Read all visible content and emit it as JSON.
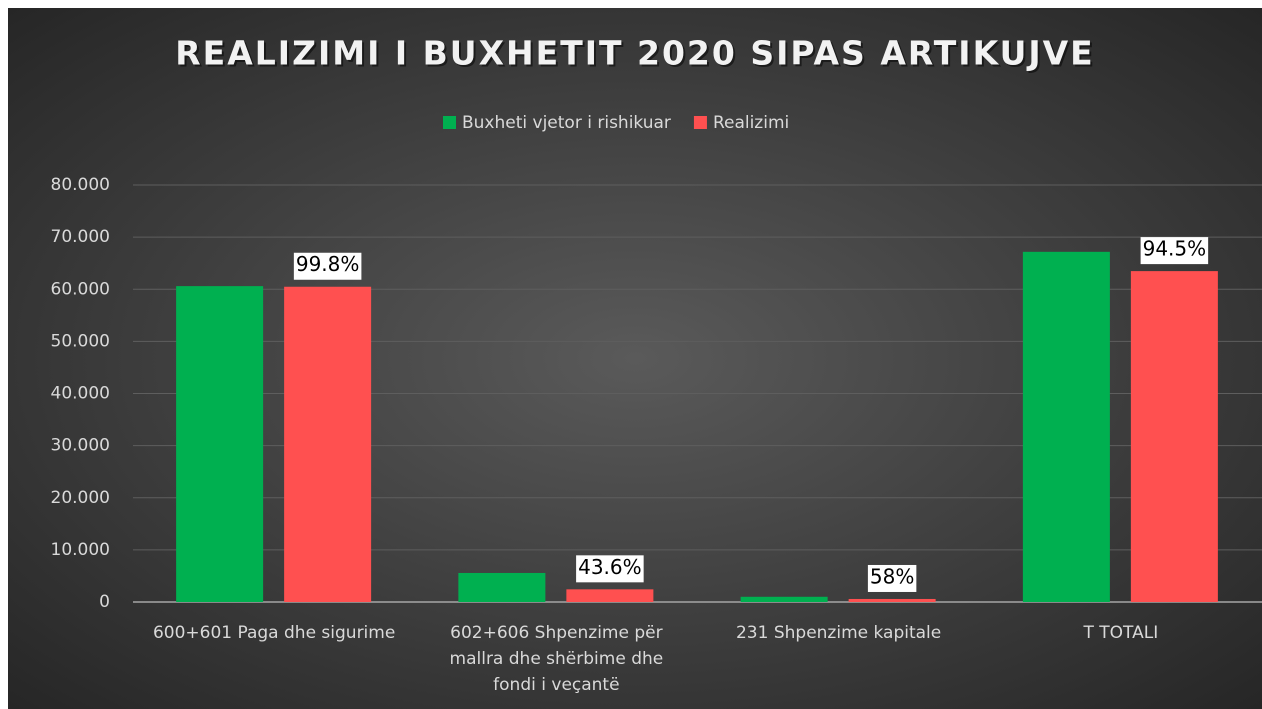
{
  "chart_data": {
    "type": "bar",
    "title": "REALIZIMI I BUXHETIT 2020 SIPAS ARTIKUJVE",
    "categories": [
      "600+601 Paga dhe sigurime",
      "602+606 Shpenzime për mallra dhe shërbime dhe fondi i veçantë",
      "231 Shpenzime kapitale",
      "T TOTALI"
    ],
    "series": [
      {
        "name": "Buxheti vjetor i rishikuar",
        "color": "#00b050",
        "values": [
          60600,
          5570,
          1000,
          67180
        ]
      },
      {
        "name": "Realizimi",
        "color": "#ff5050",
        "values": [
          60480,
          2430,
          580,
          63480
        ]
      }
    ],
    "annotations": [
      "99.8%",
      "43.6%",
      "58%",
      "94.5%"
    ],
    "ylim": [
      0,
      80000
    ],
    "yticks": [
      0,
      {
        "value": 10000,
        "label": "10.000"
      },
      {
        "value": 20000,
        "label": "20.000"
      },
      {
        "value": 30000,
        "label": "30.000"
      },
      {
        "value": 40000,
        "label": "40.000"
      },
      {
        "value": 50000,
        "label": "50.000"
      },
      {
        "value": 60000,
        "label": "60.000"
      },
      {
        "value": 70000,
        "label": "70.000"
      },
      {
        "value": 80000,
        "label": "80.000"
      }
    ],
    "grid": true,
    "legend": "top"
  }
}
